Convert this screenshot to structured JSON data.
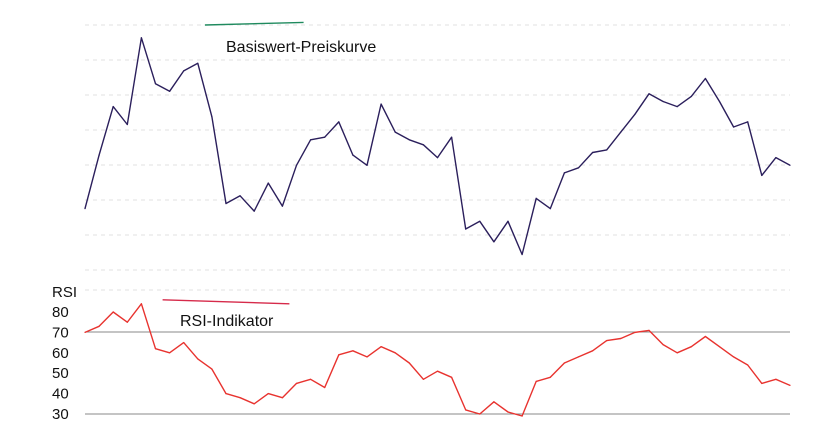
{
  "chart_data": [
    {
      "type": "line",
      "title": "Basiswert-Preiskurve",
      "ylim": [
        0,
        100
      ],
      "grid": true,
      "colors": {
        "line": "#2b1f5c",
        "divergence_up": "#1f8a5e",
        "divergence_down": "#d62a4a"
      },
      "x": [
        0,
        2,
        4,
        6,
        8,
        10,
        12,
        14,
        16,
        18,
        20,
        22,
        24,
        26,
        28,
        30,
        32,
        34,
        36,
        38,
        40,
        42,
        44,
        46,
        48,
        50,
        52,
        54,
        56,
        58,
        60,
        62,
        64,
        66,
        68,
        70,
        72,
        74,
        76,
        78,
        80,
        82,
        84,
        86,
        88,
        90,
        92,
        94,
        96,
        98,
        100
      ],
      "series": [
        {
          "name": "",
          "values": [
            28,
            49,
            68,
            61,
            95,
            77,
            74,
            82,
            85,
            64,
            30,
            33,
            27,
            38,
            29,
            45,
            55,
            56,
            62,
            49,
            45,
            69,
            58,
            55,
            53,
            48,
            56,
            20,
            23,
            15,
            23,
            10,
            32,
            28,
            42,
            44,
            50,
            51,
            58,
            65,
            73,
            70,
            68,
            72,
            79,
            70,
            60,
            62,
            41,
            48,
            45
          ]
        }
      ],
      "annotations": [
        {
          "type": "divergence-line",
          "color": "#1f8a5e",
          "from": [
            17,
            100
          ],
          "to": [
            31,
            101
          ]
        },
        {
          "type": "divergence-line",
          "color": "#d62a4a",
          "from": [
            114,
            14
          ],
          "to": [
            130,
            3
          ]
        },
        {
          "type": "divergence-line",
          "color": "#1f8a5e",
          "from": [
            152,
            75
          ],
          "to": [
            172,
            84
          ]
        }
      ]
    },
    {
      "type": "line",
      "title": "RSI-Indikator",
      "ylabel": "RSI",
      "ylim": [
        30,
        80
      ],
      "yticks": [
        80,
        70,
        60,
        50,
        40,
        30
      ],
      "reference_lines": [
        70,
        30
      ],
      "colors": {
        "line": "#e8332f",
        "divergence_up": "#1f8a5e",
        "divergence_down": "#d62a4a"
      },
      "x": [
        0,
        2,
        4,
        6,
        8,
        10,
        12,
        14,
        16,
        18,
        20,
        22,
        24,
        26,
        28,
        30,
        32,
        34,
        36,
        38,
        40,
        42,
        44,
        46,
        48,
        50,
        52,
        54,
        56,
        58,
        60,
        62,
        64,
        66,
        68,
        70,
        72,
        74,
        76,
        78,
        80,
        82,
        84,
        86,
        88,
        90,
        92,
        94,
        96,
        98,
        100
      ],
      "series": [
        {
          "name": "",
          "values": [
            70,
            73,
            80,
            75,
            84,
            62,
            60,
            65,
            57,
            52,
            40,
            38,
            35,
            40,
            38,
            45,
            47,
            43,
            59,
            61,
            58,
            63,
            60,
            55,
            47,
            51,
            48,
            32,
            30,
            36,
            31,
            29,
            46,
            48,
            55,
            58,
            61,
            66,
            67,
            70,
            71,
            64,
            60,
            63,
            68,
            63,
            58,
            54,
            45,
            47,
            44
          ]
        }
      ],
      "annotations": [
        {
          "type": "divergence-line",
          "color": "#d62a4a",
          "from": [
            11,
            86
          ],
          "to": [
            29,
            84
          ]
        },
        {
          "type": "divergence-line",
          "color": "#1f8a5e",
          "from": [
            116,
            27
          ],
          "to": [
            132,
            29
          ]
        },
        {
          "type": "divergence-line",
          "color": "#d62a4a",
          "from": [
            154,
            75
          ],
          "to": [
            176,
            71
          ]
        }
      ]
    }
  ]
}
